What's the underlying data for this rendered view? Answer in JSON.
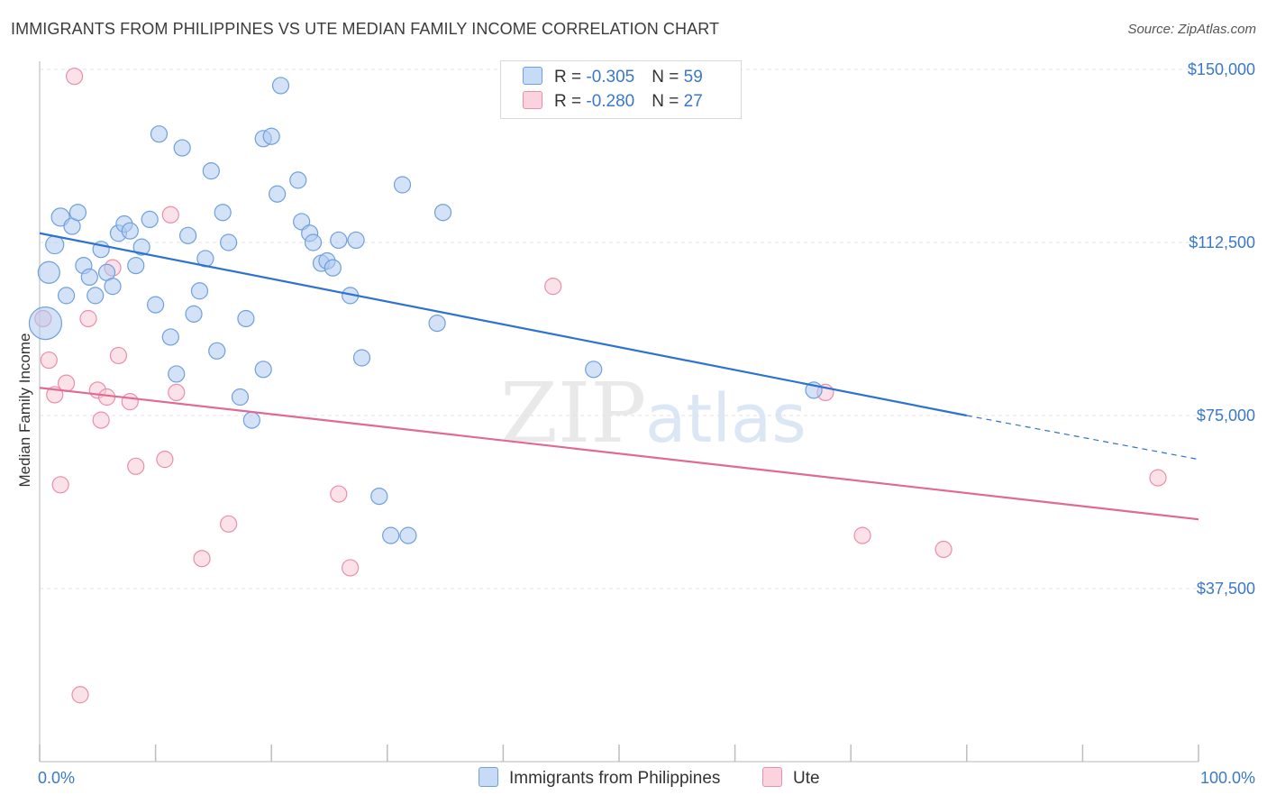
{
  "title": "IMMIGRANTS FROM PHILIPPINES VS UTE MEDIAN FAMILY INCOME CORRELATION CHART",
  "source": "Source: ZipAtlas.com",
  "legend": [
    {
      "r_label": "R = ",
      "r_value": "-0.305",
      "n_label": "N = ",
      "n_value": "59",
      "color": "#aecbf0"
    },
    {
      "r_label": "R = ",
      "r_value": "-0.280",
      "n_label": "N = ",
      "n_value": "27",
      "color": "#f6bfd0"
    }
  ],
  "colors": {
    "blue_fill": "#aecbf0",
    "blue_stroke": "#6fa0dc",
    "blue_line": "#2d72d2",
    "pink_fill": "#f8c8d6",
    "pink_stroke": "#e98fab",
    "pink_line": "#e06a93",
    "tick_text": "#3b78c8",
    "grid": "#e2e2e2"
  },
  "chart_data": {
    "type": "scatter",
    "title": "IMMIGRANTS FROM PHILIPPINES VS UTE MEDIAN FAMILY INCOME CORRELATION CHART",
    "xlabel": "",
    "ylabel": "Median Family Income",
    "xlim": [
      0,
      100
    ],
    "ylim": [
      0,
      152000
    ],
    "y_ticks": [
      37500,
      75000,
      112500,
      150000
    ],
    "y_tick_labels": [
      "$37,500",
      "$75,000",
      "$112,500",
      "$150,000"
    ],
    "x_tick_labels": [
      "0.0%",
      "100.0%"
    ],
    "grid": true,
    "legend_position": "top-center",
    "series": [
      {
        "name": "Immigrants from Philippines",
        "color": "#aecbf0",
        "points": [
          [
            0.5,
            95000,
            18
          ],
          [
            0.8,
            106000,
            12
          ],
          [
            1.3,
            112000,
            10
          ],
          [
            1.8,
            118000,
            10
          ],
          [
            2.3,
            101000,
            9
          ],
          [
            2.8,
            116000,
            9
          ],
          [
            3.3,
            119000,
            9
          ],
          [
            3.8,
            107500,
            9
          ],
          [
            4.3,
            105000,
            9
          ],
          [
            4.8,
            101000,
            9
          ],
          [
            5.3,
            111000,
            9
          ],
          [
            5.8,
            106000,
            9
          ],
          [
            6.3,
            103000,
            9
          ],
          [
            6.8,
            114500,
            9
          ],
          [
            7.3,
            116500,
            9
          ],
          [
            7.8,
            115000,
            9
          ],
          [
            8.3,
            107500,
            9
          ],
          [
            8.8,
            111500,
            9
          ],
          [
            9.5,
            117500,
            9
          ],
          [
            10.0,
            99000,
            9
          ],
          [
            10.3,
            136000,
            9
          ],
          [
            11.3,
            92000,
            9
          ],
          [
            11.8,
            84000,
            9
          ],
          [
            12.3,
            133000,
            9
          ],
          [
            12.8,
            114000,
            9
          ],
          [
            13.3,
            97000,
            9
          ],
          [
            13.8,
            102000,
            9
          ],
          [
            14.3,
            109000,
            9
          ],
          [
            14.8,
            128000,
            9
          ],
          [
            15.3,
            89000,
            9
          ],
          [
            15.8,
            119000,
            9
          ],
          [
            16.3,
            112500,
            9
          ],
          [
            17.3,
            79000,
            9
          ],
          [
            17.8,
            96000,
            9
          ],
          [
            18.3,
            74000,
            9
          ],
          [
            19.3,
            85000,
            9
          ],
          [
            19.3,
            135000,
            9
          ],
          [
            20.0,
            135500,
            9
          ],
          [
            20.5,
            123000,
            9
          ],
          [
            20.8,
            146500,
            9
          ],
          [
            22.3,
            126000,
            9
          ],
          [
            22.6,
            117000,
            9
          ],
          [
            23.3,
            114500,
            9
          ],
          [
            23.6,
            112500,
            9
          ],
          [
            24.3,
            108000,
            9
          ],
          [
            24.8,
            108500,
            9
          ],
          [
            25.3,
            107000,
            9
          ],
          [
            25.8,
            113000,
            9
          ],
          [
            26.8,
            101000,
            9
          ],
          [
            27.3,
            113000,
            9
          ],
          [
            27.8,
            87500,
            9
          ],
          [
            29.3,
            57500,
            9
          ],
          [
            30.3,
            49000,
            9
          ],
          [
            31.3,
            125000,
            9
          ],
          [
            31.8,
            49000,
            9
          ],
          [
            34.3,
            95000,
            9
          ],
          [
            34.8,
            119000,
            9
          ],
          [
            47.8,
            85000,
            9
          ],
          [
            66.8,
            80500,
            9
          ]
        ]
      },
      {
        "name": "Ute",
        "color": "#f8c8d6",
        "points": [
          [
            0.3,
            96000,
            9
          ],
          [
            0.8,
            87000,
            9
          ],
          [
            1.3,
            79500,
            9
          ],
          [
            1.8,
            60000,
            9
          ],
          [
            2.3,
            82000,
            9
          ],
          [
            3.0,
            148500,
            9
          ],
          [
            3.5,
            14500,
            9
          ],
          [
            4.2,
            96000,
            9
          ],
          [
            5.0,
            80500,
            9
          ],
          [
            5.3,
            74000,
            9
          ],
          [
            5.8,
            79000,
            9
          ],
          [
            6.3,
            107000,
            9
          ],
          [
            6.8,
            88000,
            9
          ],
          [
            7.8,
            78000,
            9
          ],
          [
            8.3,
            64000,
            9
          ],
          [
            10.8,
            65500,
            9
          ],
          [
            11.3,
            118500,
            9
          ],
          [
            11.8,
            80000,
            9
          ],
          [
            14.0,
            44000,
            9
          ],
          [
            16.3,
            51500,
            9
          ],
          [
            25.8,
            58000,
            9
          ],
          [
            26.8,
            42000,
            9
          ],
          [
            44.3,
            103000,
            9
          ],
          [
            67.8,
            80000,
            9
          ],
          [
            71.0,
            49000,
            9
          ],
          [
            78.0,
            46000,
            9
          ],
          [
            96.5,
            61500,
            9
          ]
        ]
      }
    ],
    "trend_lines": [
      {
        "series": "Immigrants from Philippines",
        "x_start": 0,
        "y_start": 114500,
        "x_end": 80,
        "y_end": 75000,
        "dash_x_end": 100,
        "dash_y_end": 65500
      },
      {
        "series": "Ute",
        "x_start": 0,
        "y_start": 81000,
        "x_end": 100,
        "y_end": 52500
      }
    ]
  },
  "bottom_legend": [
    {
      "label": "Immigrants from Philippines",
      "color": "#aecbf0"
    },
    {
      "label": "Ute",
      "color": "#f8c8d6"
    }
  ]
}
